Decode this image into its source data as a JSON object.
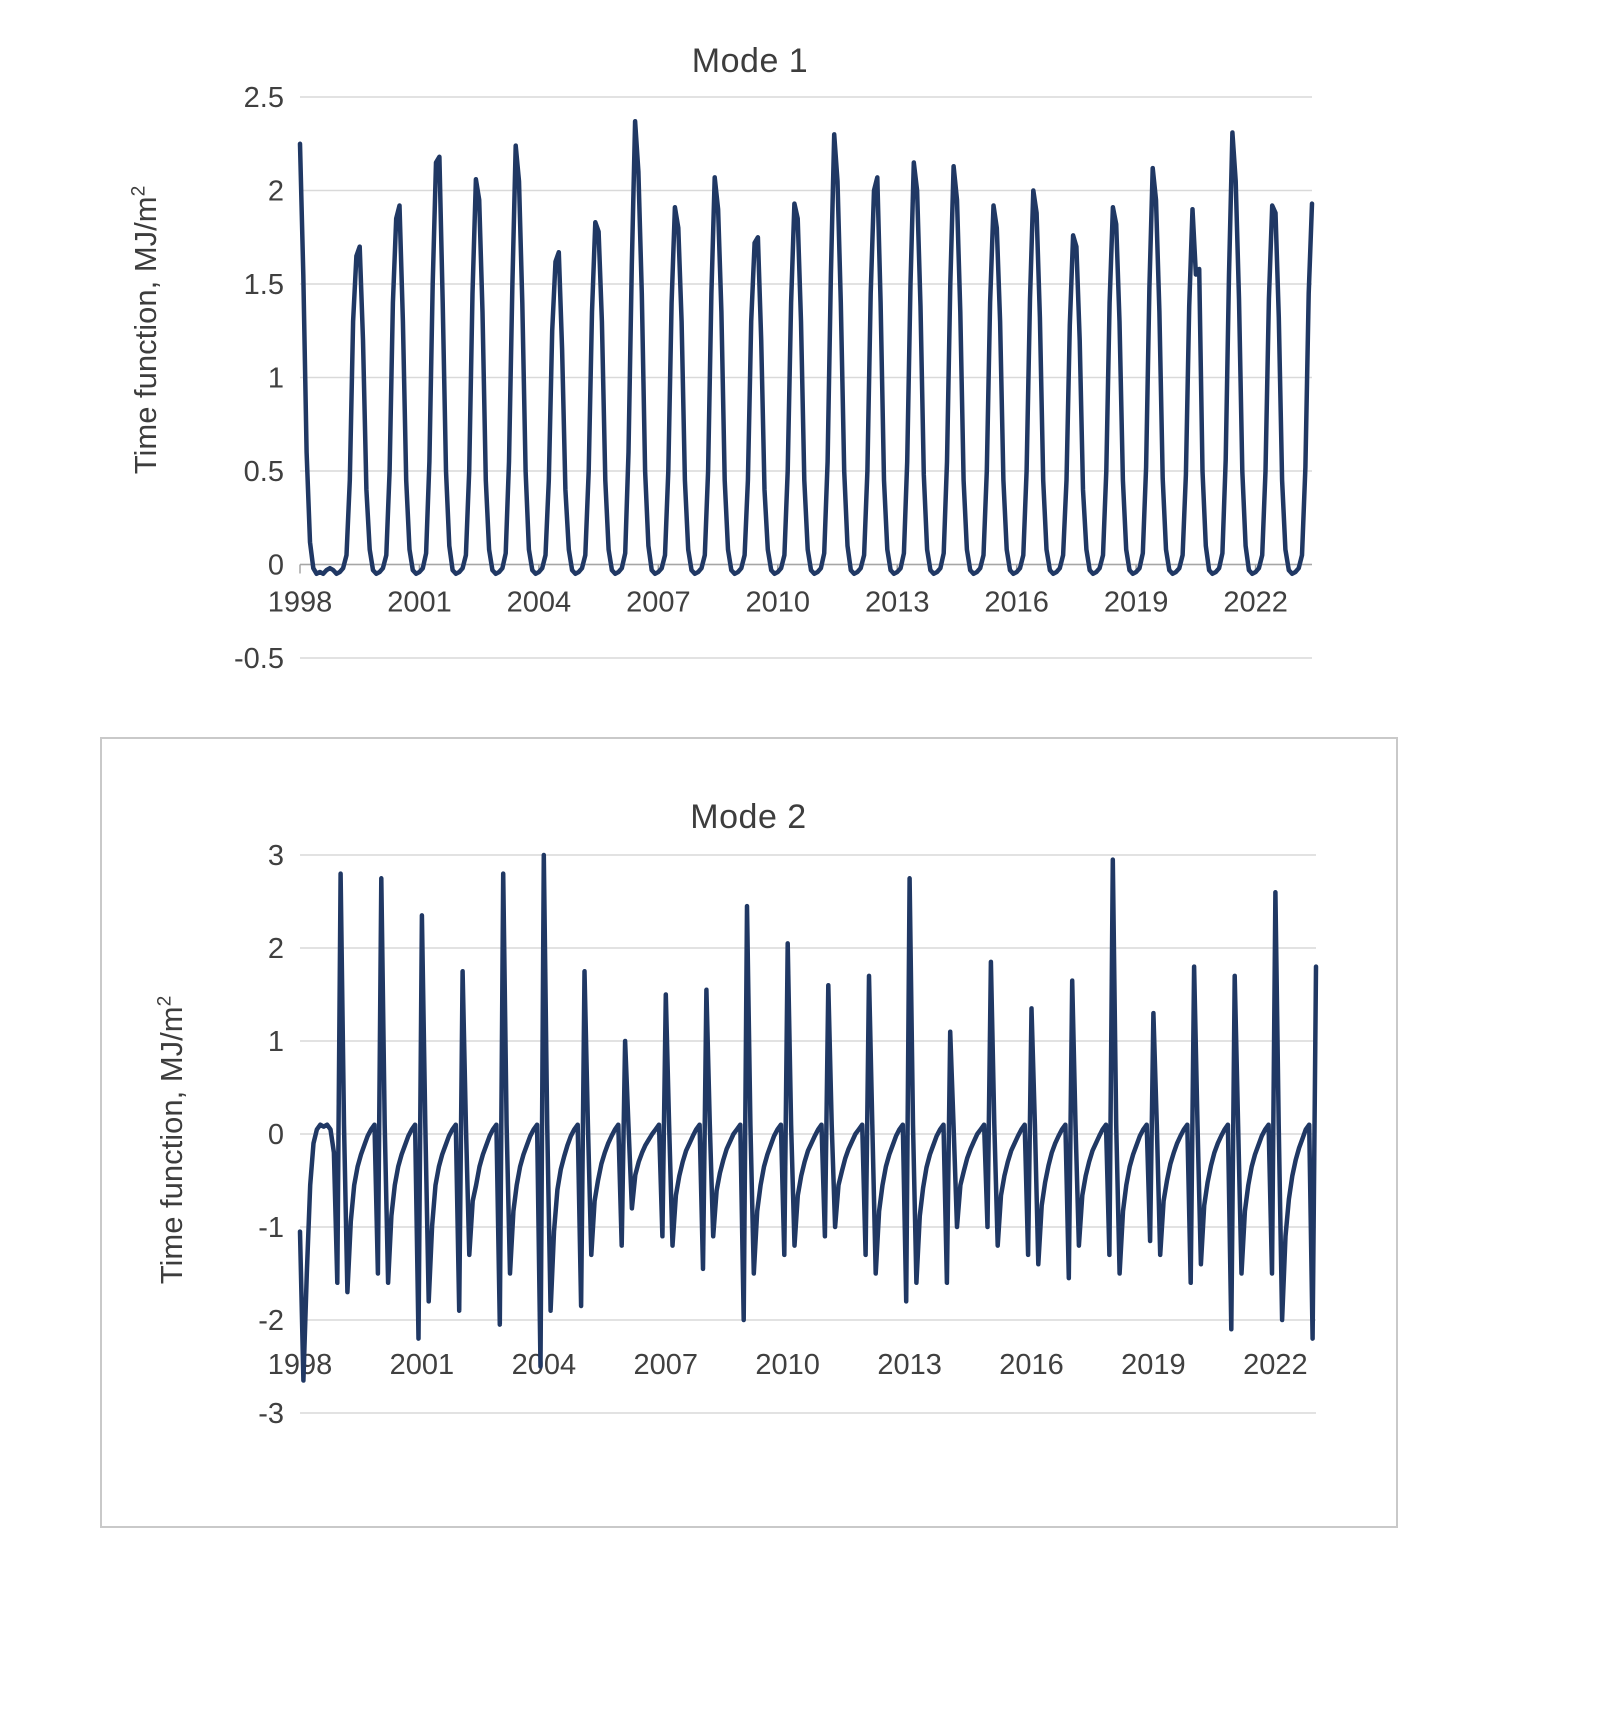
{
  "colors": {
    "line": "#203864",
    "grid": "#d9d9d9",
    "axis": "#a6a6a6",
    "tick_text": "#404040",
    "title_text": "#3d3d3d",
    "frame_border": "#c9c9c9",
    "background": "#ffffff"
  },
  "chart_data": [
    {
      "type": "line",
      "title": "Mode 1",
      "xlabel": "",
      "ylabel": "Time function, MJ/m²",
      "ylabel_text": "Time function, MJ/m",
      "ylabel_exponent": "2",
      "x_unit": "year (monthly samples)",
      "x_start": 1998.0,
      "x_step": 0.0833333,
      "xlim": [
        1998,
        2023.417
      ],
      "ylim": [
        -0.5,
        2.5
      ],
      "grid": "horizontal",
      "legend": "none",
      "ytick_values": [
        2.5,
        2,
        1.5,
        1,
        0.5,
        0,
        -0.5
      ],
      "ytick_labels": [
        "2.5",
        "2",
        "1.5",
        "1",
        "0.5",
        "0",
        "-0.5"
      ],
      "xtick_values": [
        1998,
        2001,
        2004,
        2007,
        2010,
        2013,
        2016,
        2019,
        2022
      ],
      "xtick_labels": [
        "1998",
        "2001",
        "2004",
        "2007",
        "2010",
        "2013",
        "2016",
        "2019",
        "2022"
      ],
      "values": [
        2.25,
        1.55,
        0.6,
        0.12,
        -0.02,
        -0.05,
        -0.04,
        -0.05,
        -0.03,
        -0.02,
        -0.03,
        -0.05,
        -0.04,
        -0.02,
        0.05,
        0.45,
        1.3,
        1.65,
        1.7,
        1.2,
        0.4,
        0.08,
        -0.03,
        -0.05,
        -0.04,
        -0.02,
        0.05,
        0.5,
        1.4,
        1.85,
        1.92,
        1.3,
        0.45,
        0.08,
        -0.03,
        -0.05,
        -0.04,
        -0.02,
        0.06,
        0.55,
        1.5,
        2.15,
        2.18,
        1.4,
        0.5,
        0.1,
        -0.03,
        -0.05,
        -0.04,
        -0.02,
        0.05,
        0.5,
        1.45,
        2.06,
        1.95,
        1.35,
        0.45,
        0.08,
        -0.03,
        -0.05,
        -0.04,
        -0.02,
        0.06,
        0.55,
        1.5,
        2.24,
        2.05,
        1.4,
        0.5,
        0.08,
        -0.03,
        -0.05,
        -0.04,
        -0.02,
        0.05,
        0.45,
        1.25,
        1.62,
        1.67,
        1.15,
        0.4,
        0.08,
        -0.03,
        -0.05,
        -0.04,
        -0.02,
        0.05,
        0.5,
        1.35,
        1.83,
        1.78,
        1.3,
        0.45,
        0.08,
        -0.03,
        -0.05,
        -0.04,
        -0.02,
        0.06,
        0.6,
        1.6,
        2.37,
        2.1,
        1.45,
        0.5,
        0.1,
        -0.03,
        -0.05,
        -0.04,
        -0.02,
        0.05,
        0.5,
        1.4,
        1.91,
        1.8,
        1.3,
        0.45,
        0.08,
        -0.03,
        -0.05,
        -0.04,
        -0.02,
        0.05,
        0.5,
        1.45,
        2.07,
        1.9,
        1.35,
        0.45,
        0.08,
        -0.03,
        -0.05,
        -0.04,
        -0.02,
        0.05,
        0.45,
        1.3,
        1.72,
        1.75,
        1.2,
        0.4,
        0.08,
        -0.03,
        -0.05,
        -0.04,
        -0.02,
        0.05,
        0.5,
        1.4,
        1.93,
        1.85,
        1.3,
        0.45,
        0.08,
        -0.03,
        -0.05,
        -0.04,
        -0.02,
        0.06,
        0.55,
        1.55,
        2.3,
        2.05,
        1.4,
        0.5,
        0.1,
        -0.03,
        -0.05,
        -0.04,
        -0.02,
        0.05,
        0.5,
        1.45,
        2.0,
        2.07,
        1.4,
        0.45,
        0.08,
        -0.03,
        -0.05,
        -0.04,
        -0.02,
        0.06,
        0.55,
        1.5,
        2.15,
        2.0,
        1.38,
        0.48,
        0.08,
        -0.03,
        -0.05,
        -0.04,
        -0.02,
        0.06,
        0.55,
        1.5,
        2.13,
        1.95,
        1.35,
        0.45,
        0.08,
        -0.03,
        -0.05,
        -0.04,
        -0.02,
        0.05,
        0.5,
        1.4,
        1.92,
        1.8,
        1.3,
        0.45,
        0.08,
        -0.03,
        -0.05,
        -0.04,
        -0.02,
        0.05,
        0.5,
        1.42,
        2.0,
        1.88,
        1.32,
        0.45,
        0.08,
        -0.03,
        -0.05,
        -0.04,
        -0.02,
        0.05,
        0.45,
        1.28,
        1.76,
        1.7,
        1.2,
        0.4,
        0.08,
        -0.03,
        -0.05,
        -0.04,
        -0.02,
        0.05,
        0.5,
        1.4,
        1.91,
        1.82,
        1.3,
        0.45,
        0.08,
        -0.03,
        -0.05,
        -0.04,
        -0.02,
        0.06,
        0.52,
        1.48,
        2.12,
        1.95,
        1.35,
        0.46,
        0.08,
        -0.03,
        -0.05,
        -0.04,
        -0.02,
        0.05,
        0.48,
        1.38,
        1.9,
        1.55,
        1.58,
        0.5,
        0.1,
        -0.03,
        -0.05,
        -0.04,
        -0.02,
        0.06,
        0.56,
        1.55,
        2.31,
        2.05,
        1.42,
        0.5,
        0.1,
        -0.03,
        -0.05,
        -0.04,
        -0.02,
        0.05,
        0.5,
        1.42,
        1.92,
        1.88,
        1.32,
        0.45,
        0.08,
        -0.03,
        -0.05,
        -0.04,
        -0.02,
        0.05,
        0.52,
        1.45,
        1.93
      ]
    },
    {
      "type": "line",
      "title": "Mode 2",
      "xlabel": "",
      "ylabel": "Time function, MJ/m²",
      "ylabel_text": "Time function, MJ/m",
      "ylabel_exponent": "2",
      "x_unit": "year (monthly samples)",
      "x_start": 1998.0,
      "x_step": 0.0833333,
      "xlim": [
        1998,
        2023.0
      ],
      "ylim": [
        -3,
        3
      ],
      "grid": "horizontal",
      "legend": "none",
      "ytick_values": [
        3,
        2,
        1,
        0,
        -1,
        -2,
        -3
      ],
      "ytick_labels": [
        "3",
        "2",
        "1",
        "0",
        "-1",
        "-2",
        "-3"
      ],
      "xtick_values": [
        1998,
        2001,
        2004,
        2007,
        2010,
        2013,
        2016,
        2019,
        2022
      ],
      "xtick_labels": [
        "1998",
        "2001",
        "2004",
        "2007",
        "2010",
        "2013",
        "2016",
        "2019",
        "2022"
      ],
      "values": [
        -1.05,
        -2.65,
        -1.5,
        -0.55,
        -0.1,
        0.05,
        0.1,
        0.08,
        0.1,
        0.05,
        -0.2,
        -1.6,
        2.8,
        0.1,
        -1.7,
        -0.94,
        -0.55,
        -0.35,
        -0.22,
        -0.12,
        -0.02,
        0.05,
        0.1,
        -1.5,
        2.75,
        0.1,
        -1.6,
        -0.88,
        -0.55,
        -0.35,
        -0.22,
        -0.12,
        -0.02,
        0.05,
        0.1,
        -2.2,
        2.35,
        0.1,
        -1.8,
        -0.99,
        -0.55,
        -0.35,
        -0.22,
        -0.12,
        -0.02,
        0.05,
        0.1,
        -1.9,
        1.75,
        0.1,
        -1.3,
        -0.72,
        -0.55,
        -0.35,
        -0.22,
        -0.12,
        -0.02,
        0.05,
        0.1,
        -2.05,
        2.8,
        0.1,
        -1.5,
        -0.83,
        -0.55,
        -0.35,
        -0.22,
        -0.12,
        -0.02,
        0.05,
        0.1,
        -2.5,
        3.0,
        0.1,
        -1.9,
        -1.05,
        -0.6,
        -0.38,
        -0.24,
        -0.12,
        -0.02,
        0.05,
        0.1,
        -1.85,
        1.75,
        0.1,
        -1.3,
        -0.72,
        -0.5,
        -0.32,
        -0.2,
        -0.1,
        -0.02,
        0.05,
        0.1,
        -1.2,
        1.0,
        0.08,
        -0.8,
        -0.44,
        -0.3,
        -0.2,
        -0.12,
        -0.06,
        0.0,
        0.05,
        0.1,
        -1.1,
        1.5,
        0.1,
        -1.2,
        -0.66,
        -0.45,
        -0.3,
        -0.18,
        -0.1,
        -0.02,
        0.05,
        0.1,
        -1.45,
        1.55,
        0.1,
        -1.1,
        -0.61,
        -0.42,
        -0.28,
        -0.16,
        -0.08,
        0.0,
        0.05,
        0.1,
        -2.0,
        2.45,
        0.1,
        -1.5,
        -0.83,
        -0.55,
        -0.35,
        -0.22,
        -0.12,
        -0.02,
        0.05,
        0.1,
        -1.3,
        2.05,
        0.1,
        -1.2,
        -0.66,
        -0.45,
        -0.3,
        -0.18,
        -0.1,
        -0.02,
        0.05,
        0.1,
        -1.1,
        1.6,
        0.1,
        -1.0,
        -0.55,
        -0.4,
        -0.26,
        -0.16,
        -0.08,
        0.0,
        0.05,
        0.1,
        -1.3,
        1.7,
        0.1,
        -1.5,
        -0.83,
        -0.55,
        -0.35,
        -0.22,
        -0.12,
        -0.02,
        0.05,
        0.1,
        -1.8,
        2.75,
        0.1,
        -1.6,
        -0.88,
        -0.58,
        -0.36,
        -0.22,
        -0.12,
        -0.02,
        0.05,
        0.1,
        -1.6,
        1.1,
        0.08,
        -1.0,
        -0.55,
        -0.4,
        -0.26,
        -0.16,
        -0.08,
        0.0,
        0.05,
        0.1,
        -1.0,
        1.85,
        0.1,
        -1.2,
        -0.66,
        -0.45,
        -0.3,
        -0.18,
        -0.1,
        -0.02,
        0.05,
        0.1,
        -1.3,
        1.35,
        0.1,
        -1.4,
        -0.77,
        -0.52,
        -0.34,
        -0.2,
        -0.1,
        -0.02,
        0.05,
        0.1,
        -1.55,
        1.65,
        0.1,
        -1.2,
        -0.66,
        -0.45,
        -0.3,
        -0.18,
        -0.1,
        -0.02,
        0.05,
        0.1,
        -1.3,
        2.95,
        0.1,
        -1.5,
        -0.83,
        -0.55,
        -0.35,
        -0.22,
        -0.12,
        -0.02,
        0.05,
        0.1,
        -1.15,
        1.3,
        0.1,
        -1.3,
        -0.72,
        -0.5,
        -0.32,
        -0.2,
        -0.1,
        -0.02,
        0.05,
        0.1,
        -1.6,
        1.8,
        0.1,
        -1.4,
        -0.77,
        -0.52,
        -0.34,
        -0.2,
        -0.1,
        -0.02,
        0.05,
        0.1,
        -2.1,
        1.7,
        0.1,
        -1.5,
        -0.83,
        -0.55,
        -0.35,
        -0.22,
        -0.12,
        -0.02,
        0.05,
        0.1,
        -1.5,
        2.6,
        0.1,
        -2.0,
        -1.1,
        -0.7,
        -0.45,
        -0.28,
        -0.15,
        -0.05,
        0.05,
        0.1,
        -2.2,
        1.8
      ]
    }
  ]
}
